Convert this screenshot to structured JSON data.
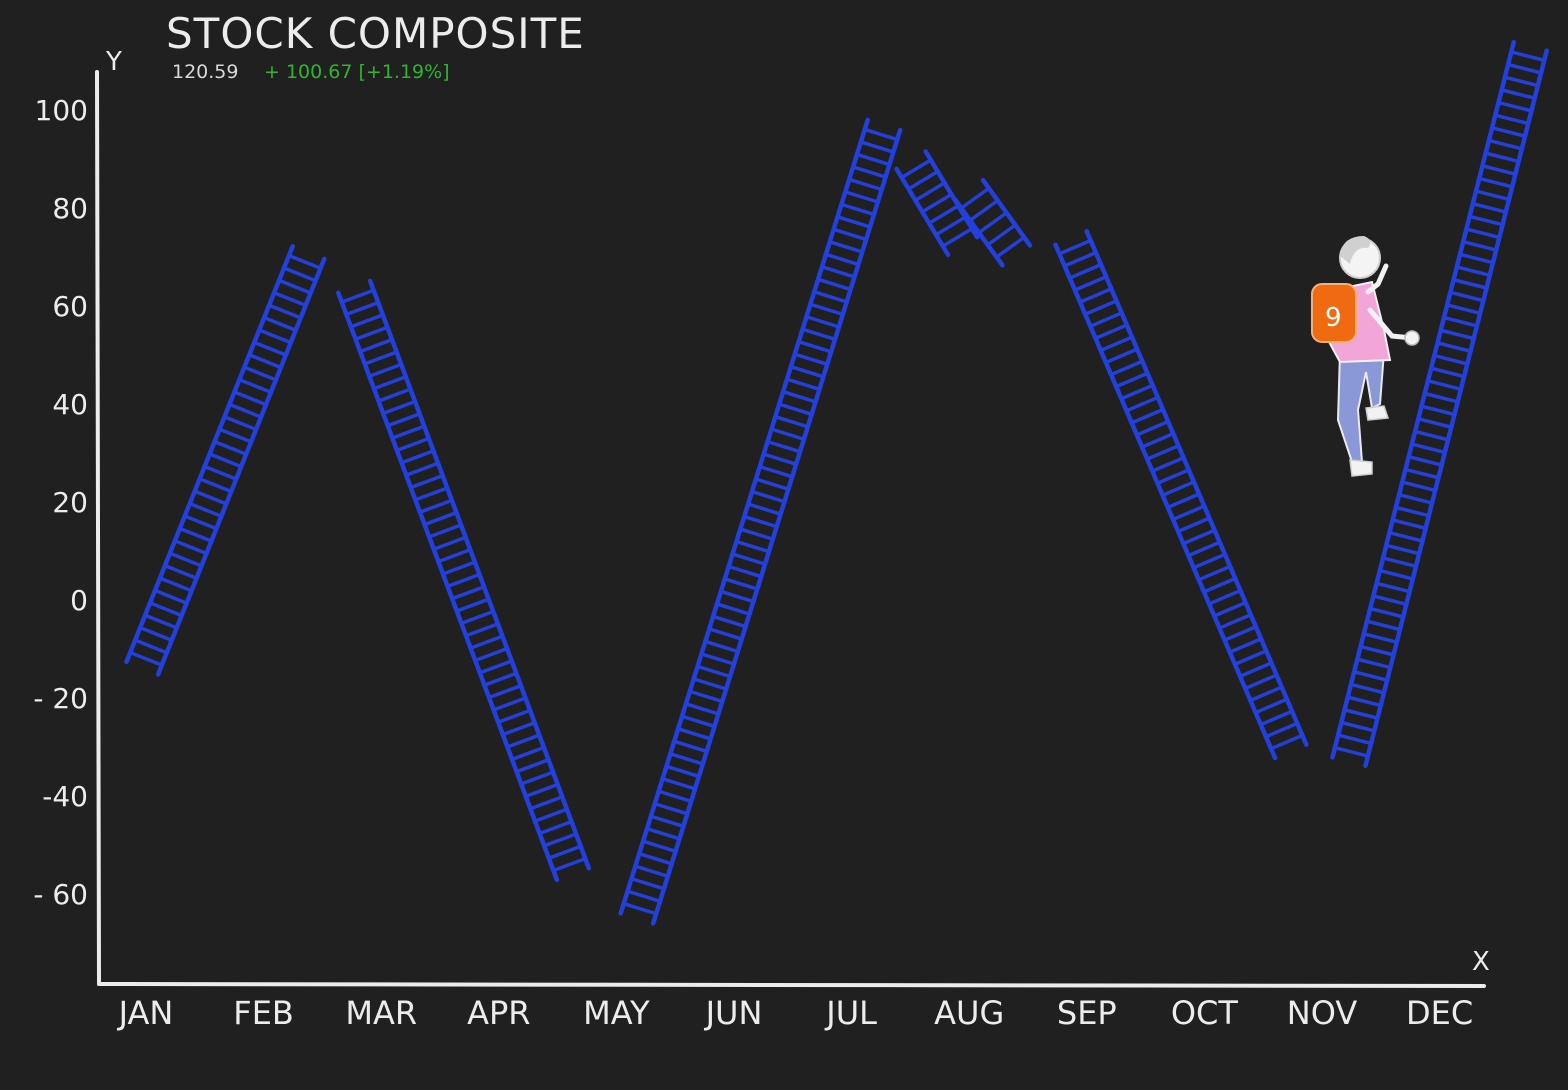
{
  "colors": {
    "background": "#202020",
    "chalk": "#ececec",
    "ladder": "#2340dd",
    "change_positive": "#2fb52f",
    "climber_shirt": "#f2a6d8",
    "climber_backpack": "#f06a12",
    "climber_pants": "#8b98d8"
  },
  "chart_data": {
    "type": "line",
    "title": "STOCK COMPOSITE",
    "quote": {
      "value": "120.59",
      "change": "+ 100.67 [+1.19%]"
    },
    "xlabel": "X",
    "ylabel": "Y",
    "categories": [
      "JAN",
      "FEB",
      "MAR",
      "APR",
      "MAY",
      "JUN",
      "JUL",
      "AUG",
      "SEP",
      "OCT",
      "NOV",
      "DEC"
    ],
    "yticks": [
      100,
      80,
      60,
      40,
      20,
      0,
      -20,
      -40,
      -60
    ],
    "ytick_labels": [
      "100",
      "80",
      "60",
      "40",
      "20",
      "0",
      "- 20",
      "-40",
      "- 60"
    ],
    "ylim": [
      -78,
      112
    ],
    "grid": false,
    "mark_style": "ladder",
    "segments": [
      {
        "x": [
          0.0,
          1.35
        ],
        "y": [
          -12,
          69
        ]
      },
      {
        "x": [
          1.8,
          3.6
        ],
        "y": [
          62,
          -54
        ]
      },
      {
        "x": [
          4.2,
          6.25
        ],
        "y": [
          -63,
          95
        ]
      },
      {
        "x": [
          6.55,
          6.9
        ],
        "y": [
          88,
          74
        ]
      },
      {
        "x": [
          7.05,
          7.35
        ],
        "y": [
          82,
          72
        ]
      },
      {
        "x": [
          7.9,
          9.7
        ],
        "y": [
          72,
          -29
        ]
      },
      {
        "x": [
          10.25,
          11.75
        ],
        "y": [
          -31,
          111
        ]
      }
    ],
    "annotations": [
      {
        "type": "figure",
        "description": "person with orange backpack climbing the last ladder",
        "x": 10.8,
        "y": 40
      }
    ]
  }
}
